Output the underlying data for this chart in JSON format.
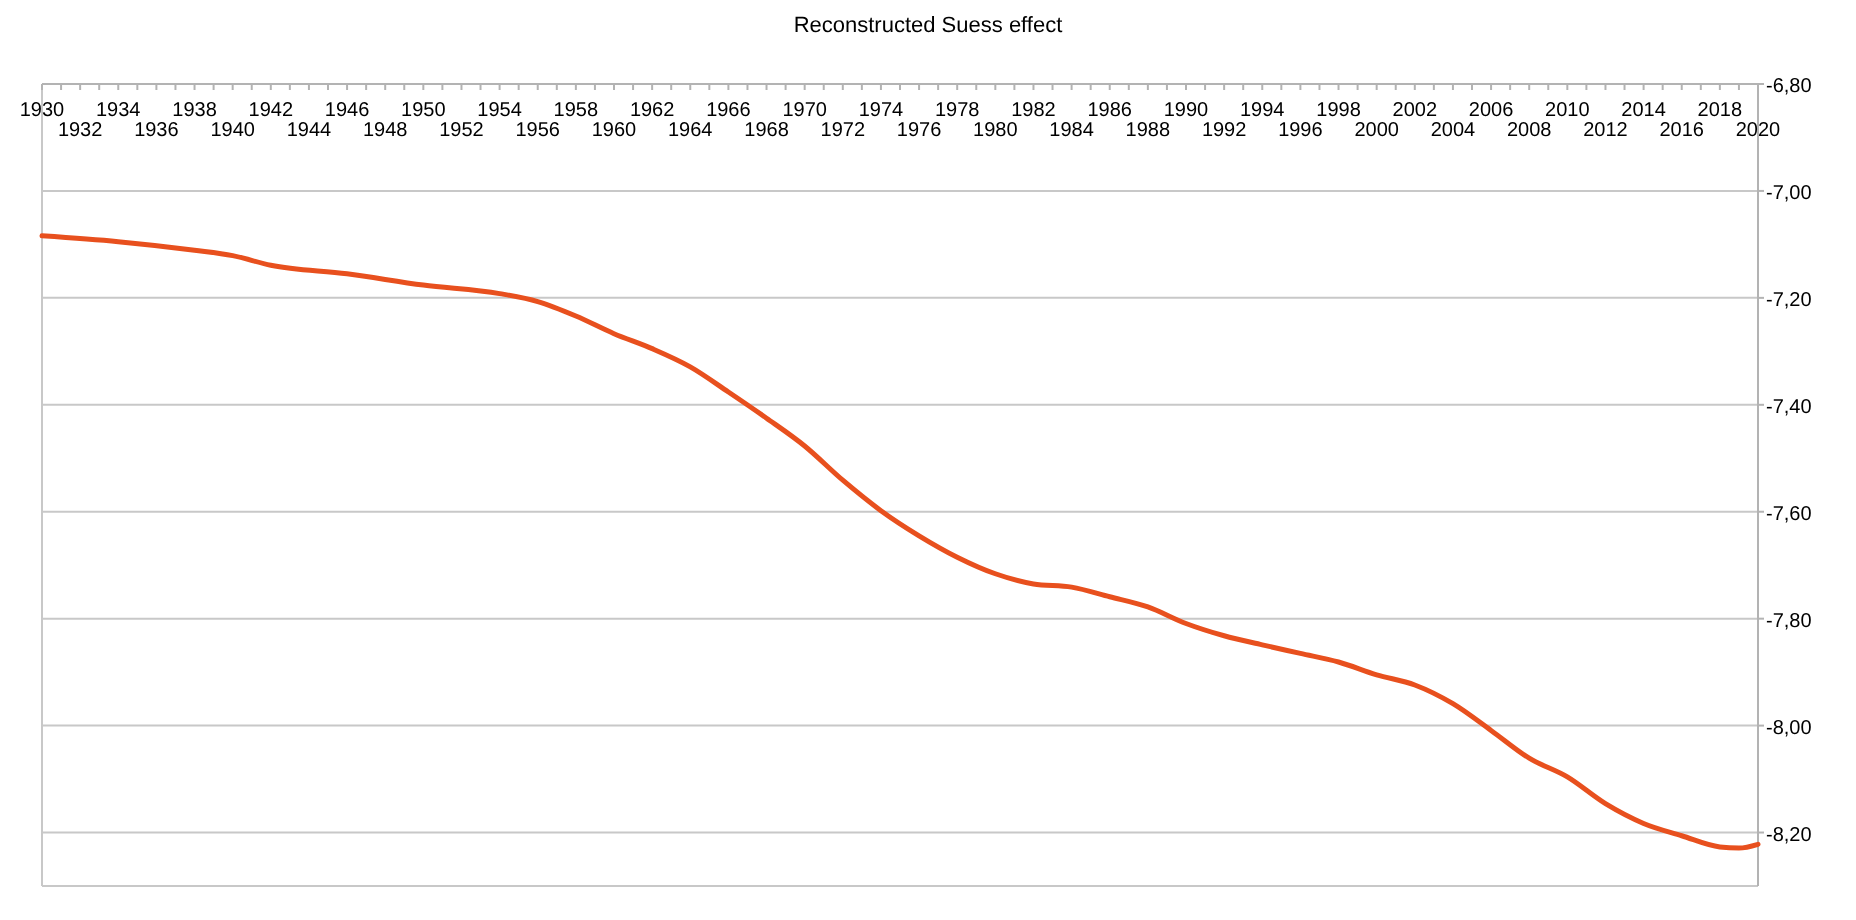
{
  "chart_data": {
    "type": "line",
    "title": "Reconstructed Suess effect",
    "x": [
      1930,
      1934,
      1938,
      1940,
      1942,
      1946,
      1950,
      1954,
      1956,
      1958,
      1960,
      1962,
      1964,
      1966,
      1968,
      1970,
      1972,
      1974,
      1976,
      1978,
      1980,
      1982,
      1984,
      1986,
      1988,
      1990,
      1992,
      1994,
      1996,
      1998,
      2000,
      2002,
      2004,
      2006,
      2008,
      2010,
      2012,
      2014,
      2016,
      2018,
      2019,
      2020
    ],
    "series": [
      {
        "color": "#e8501e",
        "values": [
          -7.084,
          -7.095,
          -7.111,
          -7.121,
          -7.139,
          -7.155,
          -7.176,
          -7.192,
          -7.207,
          -7.234,
          -7.267,
          -7.295,
          -7.329,
          -7.376,
          -7.425,
          -7.477,
          -7.541,
          -7.598,
          -7.645,
          -7.685,
          -7.716,
          -7.735,
          -7.741,
          -7.759,
          -7.778,
          -7.809,
          -7.832,
          -7.849,
          -7.865,
          -7.881,
          -7.905,
          -7.924,
          -7.959,
          -8.009,
          -8.061,
          -8.096,
          -8.146,
          -8.183,
          -8.206,
          -8.227,
          -8.229,
          -8.222
        ]
      }
    ],
    "xlim": [
      1930,
      2020
    ],
    "x2lim": [
      1930,
      2020
    ],
    "x2ticks": [
      1930,
      1934,
      1938,
      1942,
      1946,
      1950,
      1954,
      1958,
      1962,
      1966,
      1970,
      1974,
      1978,
      1982,
      1986,
      1990,
      1994,
      1998,
      2002,
      2006,
      2010,
      2014,
      2018
    ],
    "xticks": [
      {
        "value": 1931,
        "label": null
      },
      1932,
      {
        "value": 1933,
        "label": null
      },
      {
        "value": 1935,
        "label": null
      },
      1936,
      {
        "value": 1937,
        "label": null
      },
      {
        "value": 1939,
        "label": null
      },
      1940,
      {
        "value": 1941,
        "label": null
      },
      {
        "value": 1943,
        "label": null
      },
      1944,
      {
        "value": 1945,
        "label": null
      },
      {
        "value": 1947,
        "label": null
      },
      1948,
      {
        "value": 1949,
        "label": null
      },
      {
        "value": 1951,
        "label": null
      },
      1952,
      {
        "value": 1953,
        "label": null
      },
      {
        "value": 1955,
        "label": null
      },
      1956,
      {
        "value": 1957,
        "label": null
      },
      {
        "value": 1959,
        "label": null
      },
      1960,
      {
        "value": 1961,
        "label": null
      },
      {
        "value": 1963,
        "label": null
      },
      1964,
      {
        "value": 1965,
        "label": null
      },
      {
        "value": 1967,
        "label": null
      },
      1968,
      {
        "value": 1969,
        "label": null
      },
      {
        "value": 1971,
        "label": null
      },
      1972,
      {
        "value": 1973,
        "label": null
      },
      {
        "value": 1975,
        "label": null
      },
      1976,
      {
        "value": 1977,
        "label": null
      },
      {
        "value": 1979,
        "label": null
      },
      1980,
      {
        "value": 1981,
        "label": null
      },
      {
        "value": 1983,
        "label": null
      },
      1984,
      {
        "value": 1985,
        "label": null
      },
      {
        "value": 1987,
        "label": null
      },
      1988,
      {
        "value": 1989,
        "label": null
      },
      {
        "value": 1991,
        "label": null
      },
      1992,
      {
        "value": 1993,
        "label": null
      },
      {
        "value": 1995,
        "label": null
      },
      1996,
      {
        "value": 1997,
        "label": null
      },
      {
        "value": 1999,
        "label": null
      },
      2000,
      {
        "value": 2001,
        "label": null
      },
      {
        "value": 2003,
        "label": null
      },
      2004,
      {
        "value": 2005,
        "label": null
      },
      {
        "value": 2007,
        "label": null
      },
      2008,
      {
        "value": 2009,
        "label": null
      },
      {
        "value": 2011,
        "label": null
      },
      2012,
      {
        "value": 2013,
        "label": null
      },
      {
        "value": 2015,
        "label": null
      },
      2016,
      {
        "value": 2017,
        "label": null
      },
      {
        "value": 2019,
        "label": null
      },
      2020
    ],
    "ylim": [
      -8.3,
      -6.8
    ],
    "yticks": [
      {
        "value": -6.8,
        "label": "-6,80"
      },
      {
        "value": -7.0,
        "label": "-7,00"
      },
      {
        "value": -7.2,
        "label": "-7,20"
      },
      {
        "value": -7.4,
        "label": "-7,40"
      },
      {
        "value": -7.6,
        "label": "-7,60"
      },
      {
        "value": -7.8,
        "label": "-7,80"
      },
      {
        "value": -8.0,
        "label": "-8,00"
      },
      {
        "value": -8.2,
        "label": "-8,20"
      }
    ],
    "grid": "y",
    "marker": "none",
    "line_style": "solid"
  }
}
